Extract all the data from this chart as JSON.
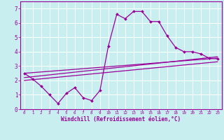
{
  "background_color": "#c8eef0",
  "grid_color": "#ffffff",
  "line_color": "#990099",
  "xlim": [
    -0.5,
    23.5
  ],
  "ylim": [
    0,
    7.5
  ],
  "xtick_positions": [
    0,
    1,
    2,
    3,
    4,
    5,
    6,
    7,
    8,
    9,
    10,
    11,
    12,
    13,
    14,
    15,
    16,
    17,
    18,
    19,
    20,
    21,
    22,
    23
  ],
  "xtick_labels": [
    "0",
    "1",
    "2",
    "3",
    "4",
    "5",
    "6",
    "7",
    "8",
    "9",
    "10",
    "11",
    "12",
    "13",
    "14",
    "15",
    "16",
    "17",
    "18",
    "19",
    "20",
    "21",
    "22",
    "23"
  ],
  "ytick_positions": [
    0,
    1,
    2,
    3,
    4,
    5,
    6,
    7
  ],
  "ytick_labels": [
    "0",
    "1",
    "2",
    "3",
    "4",
    "5",
    "6",
    "7"
  ],
  "xlabel": "Windchill (Refroidissement éolien,°C)",
  "series1_x": [
    0,
    1,
    2,
    3,
    4,
    5,
    6,
    7,
    8,
    9,
    10,
    11,
    12,
    13,
    14,
    15,
    16,
    17,
    18,
    19,
    20,
    21,
    22,
    23
  ],
  "series1_y": [
    2.5,
    2.1,
    1.6,
    1.0,
    0.4,
    1.1,
    1.5,
    0.8,
    0.6,
    1.3,
    4.4,
    6.6,
    6.3,
    6.8,
    6.8,
    6.1,
    6.1,
    5.1,
    4.3,
    4.0,
    4.0,
    3.85,
    3.55,
    3.5
  ],
  "series2_x": [
    0,
    23
  ],
  "series2_y": [
    2.5,
    3.55
  ],
  "series3_x": [
    0,
    23
  ],
  "series3_y": [
    2.2,
    3.65
  ],
  "series4_x": [
    0,
    23
  ],
  "series4_y": [
    2.0,
    3.3
  ]
}
